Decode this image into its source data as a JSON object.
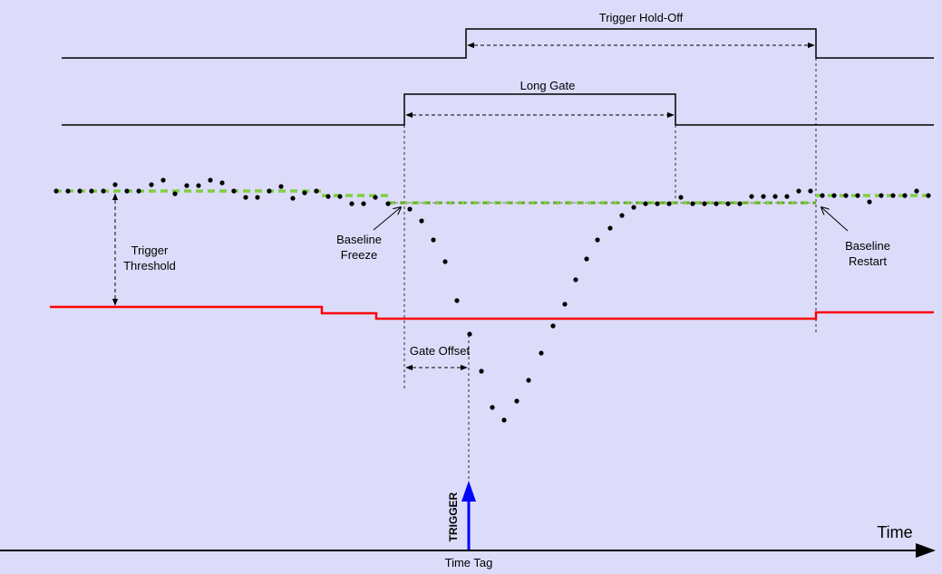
{
  "labels": {
    "trigger_holdoff": "Trigger Hold-Off",
    "long_gate": "Long Gate",
    "trigger_threshold_line1": "Trigger",
    "trigger_threshold_line2": "Threshold",
    "baseline_freeze_line1": "Baseline",
    "baseline_freeze_line2": "Freeze",
    "baseline_restart_line1": "Baseline",
    "baseline_restart_line2": "Restart",
    "gate_offset": "Gate Offset",
    "trigger": "TRIGGER",
    "time": "Time",
    "time_tag": "Time Tag"
  },
  "colors": {
    "background": "#dcdcfa",
    "signal_line": "#000000",
    "threshold": "#ff0000",
    "baseline": "#7fcf3f",
    "trigger_arrow": "#0000ff"
  }
}
